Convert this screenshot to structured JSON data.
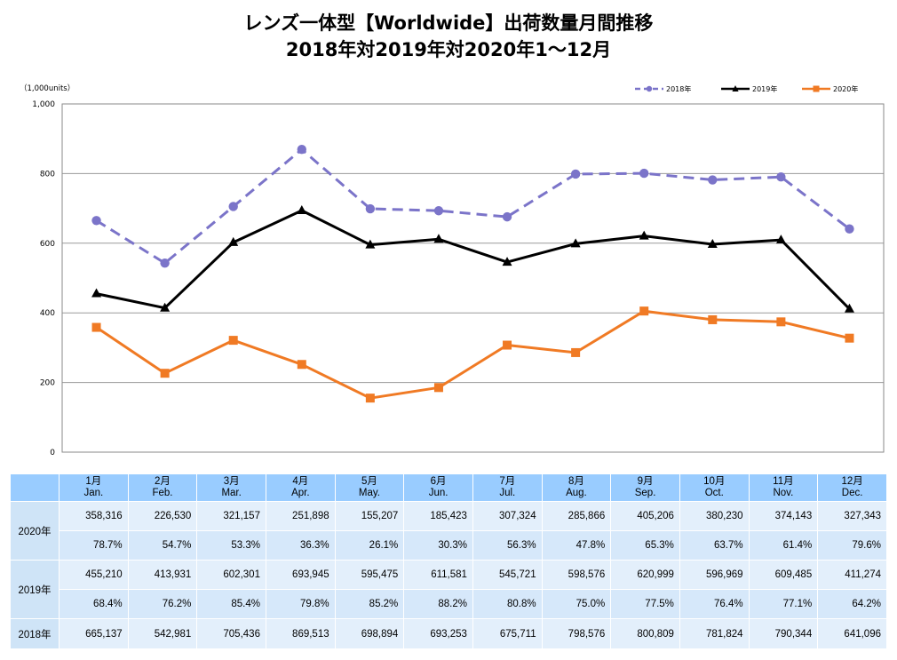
{
  "title": {
    "line1": "レンズ一体型【Worldwide】出荷数量月間推移",
    "line2": "2018年対2019年対2020年1～12月"
  },
  "chart_data": {
    "type": "line",
    "unit_label": "（1,000units）",
    "ylim": [
      0,
      1000
    ],
    "yticks": [
      0,
      200,
      400,
      600,
      800,
      1000
    ],
    "ytick_labels": [
      "0",
      "200",
      "400",
      "600",
      "800",
      "1,000"
    ],
    "grid": true,
    "legend_position": "top-right",
    "categories": [
      "1月",
      "2月",
      "3月",
      "4月",
      "5月",
      "6月",
      "7月",
      "8月",
      "9月",
      "10月",
      "11月",
      "12月"
    ],
    "series": [
      {
        "name": "2018年",
        "color": "#7b74c9",
        "style": "dashed",
        "marker": "circle",
        "values": [
          665.137,
          542.981,
          705.436,
          869.513,
          698.894,
          693.253,
          675.711,
          798.576,
          800.809,
          781.824,
          790.344,
          641.096
        ]
      },
      {
        "name": "2019年",
        "color": "#000000",
        "style": "solid",
        "marker": "triangle",
        "values": [
          455.21,
          413.931,
          602.301,
          693.945,
          595.475,
          611.581,
          545.721,
          598.576,
          620.999,
          596.969,
          609.485,
          411.274
        ]
      },
      {
        "name": "2020年",
        "color": "#f07a24",
        "style": "solid",
        "marker": "square",
        "values": [
          358.316,
          226.53,
          321.157,
          251.898,
          155.207,
          185.423,
          307.324,
          285.866,
          405.206,
          380.23,
          374.143,
          327.343
        ]
      }
    ]
  },
  "table": {
    "months": [
      {
        "jp": "1月",
        "en": "Jan."
      },
      {
        "jp": "2月",
        "en": "Feb."
      },
      {
        "jp": "3月",
        "en": "Mar."
      },
      {
        "jp": "4月",
        "en": "Apr."
      },
      {
        "jp": "5月",
        "en": "May."
      },
      {
        "jp": "6月",
        "en": "Jun."
      },
      {
        "jp": "7月",
        "en": "Jul."
      },
      {
        "jp": "8月",
        "en": "Aug."
      },
      {
        "jp": "9月",
        "en": "Sep."
      },
      {
        "jp": "10月",
        "en": "Oct."
      },
      {
        "jp": "11月",
        "en": "Nov."
      },
      {
        "jp": "12月",
        "en": "Dec."
      }
    ],
    "rows": [
      {
        "year": "2020年",
        "units": [
          "358,316",
          "226,530",
          "321,157",
          "251,898",
          "155,207",
          "185,423",
          "307,324",
          "285,866",
          "405,206",
          "380,230",
          "374,143",
          "327,343"
        ],
        "pct": [
          "78.7%",
          "54.7%",
          "53.3%",
          "36.3%",
          "26.1%",
          "30.3%",
          "56.3%",
          "47.8%",
          "65.3%",
          "63.7%",
          "61.4%",
          "79.6%"
        ]
      },
      {
        "year": "2019年",
        "units": [
          "455,210",
          "413,931",
          "602,301",
          "693,945",
          "595,475",
          "611,581",
          "545,721",
          "598,576",
          "620,999",
          "596,969",
          "609,485",
          "411,274"
        ],
        "pct": [
          "68.4%",
          "76.2%",
          "85.4%",
          "79.8%",
          "85.2%",
          "88.2%",
          "80.8%",
          "75.0%",
          "77.5%",
          "76.4%",
          "77.1%",
          "64.2%"
        ]
      },
      {
        "year": "2018年",
        "units": [
          "665,137",
          "542,981",
          "705,436",
          "869,513",
          "698,894",
          "693,253",
          "675,711",
          "798,576",
          "800,809",
          "781,824",
          "790,344",
          "641,096"
        ]
      }
    ]
  }
}
